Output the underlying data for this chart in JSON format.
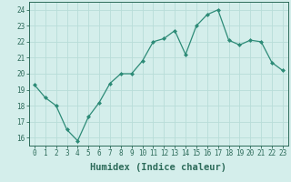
{
  "x": [
    0,
    1,
    2,
    3,
    4,
    5,
    6,
    7,
    8,
    9,
    10,
    11,
    12,
    13,
    14,
    15,
    16,
    17,
    18,
    19,
    20,
    21,
    22,
    23
  ],
  "y": [
    19.3,
    18.5,
    18.0,
    16.5,
    15.8,
    17.3,
    18.2,
    19.4,
    20.0,
    20.0,
    20.8,
    22.0,
    22.2,
    22.7,
    21.2,
    23.0,
    23.7,
    24.0,
    22.1,
    21.8,
    22.1,
    22.0,
    20.7,
    20.2
  ],
  "line_color": "#2d8b77",
  "marker": "D",
  "marker_size": 2.0,
  "bg_color": "#d4eeeb",
  "grid_color": "#b8ddd8",
  "xlabel": "Humidex (Indice chaleur)",
  "ylim": [
    15.5,
    24.5
  ],
  "xlim": [
    -0.5,
    23.5
  ],
  "yticks": [
    16,
    17,
    18,
    19,
    20,
    21,
    22,
    23,
    24
  ],
  "xticks": [
    0,
    1,
    2,
    3,
    4,
    5,
    6,
    7,
    8,
    9,
    10,
    11,
    12,
    13,
    14,
    15,
    16,
    17,
    18,
    19,
    20,
    21,
    22,
    23
  ],
  "tick_fontsize": 5.5,
  "xlabel_fontsize": 7.5,
  "tick_color": "#2d6b5a",
  "axis_color": "#2d6b5a",
  "linewidth": 0.9
}
